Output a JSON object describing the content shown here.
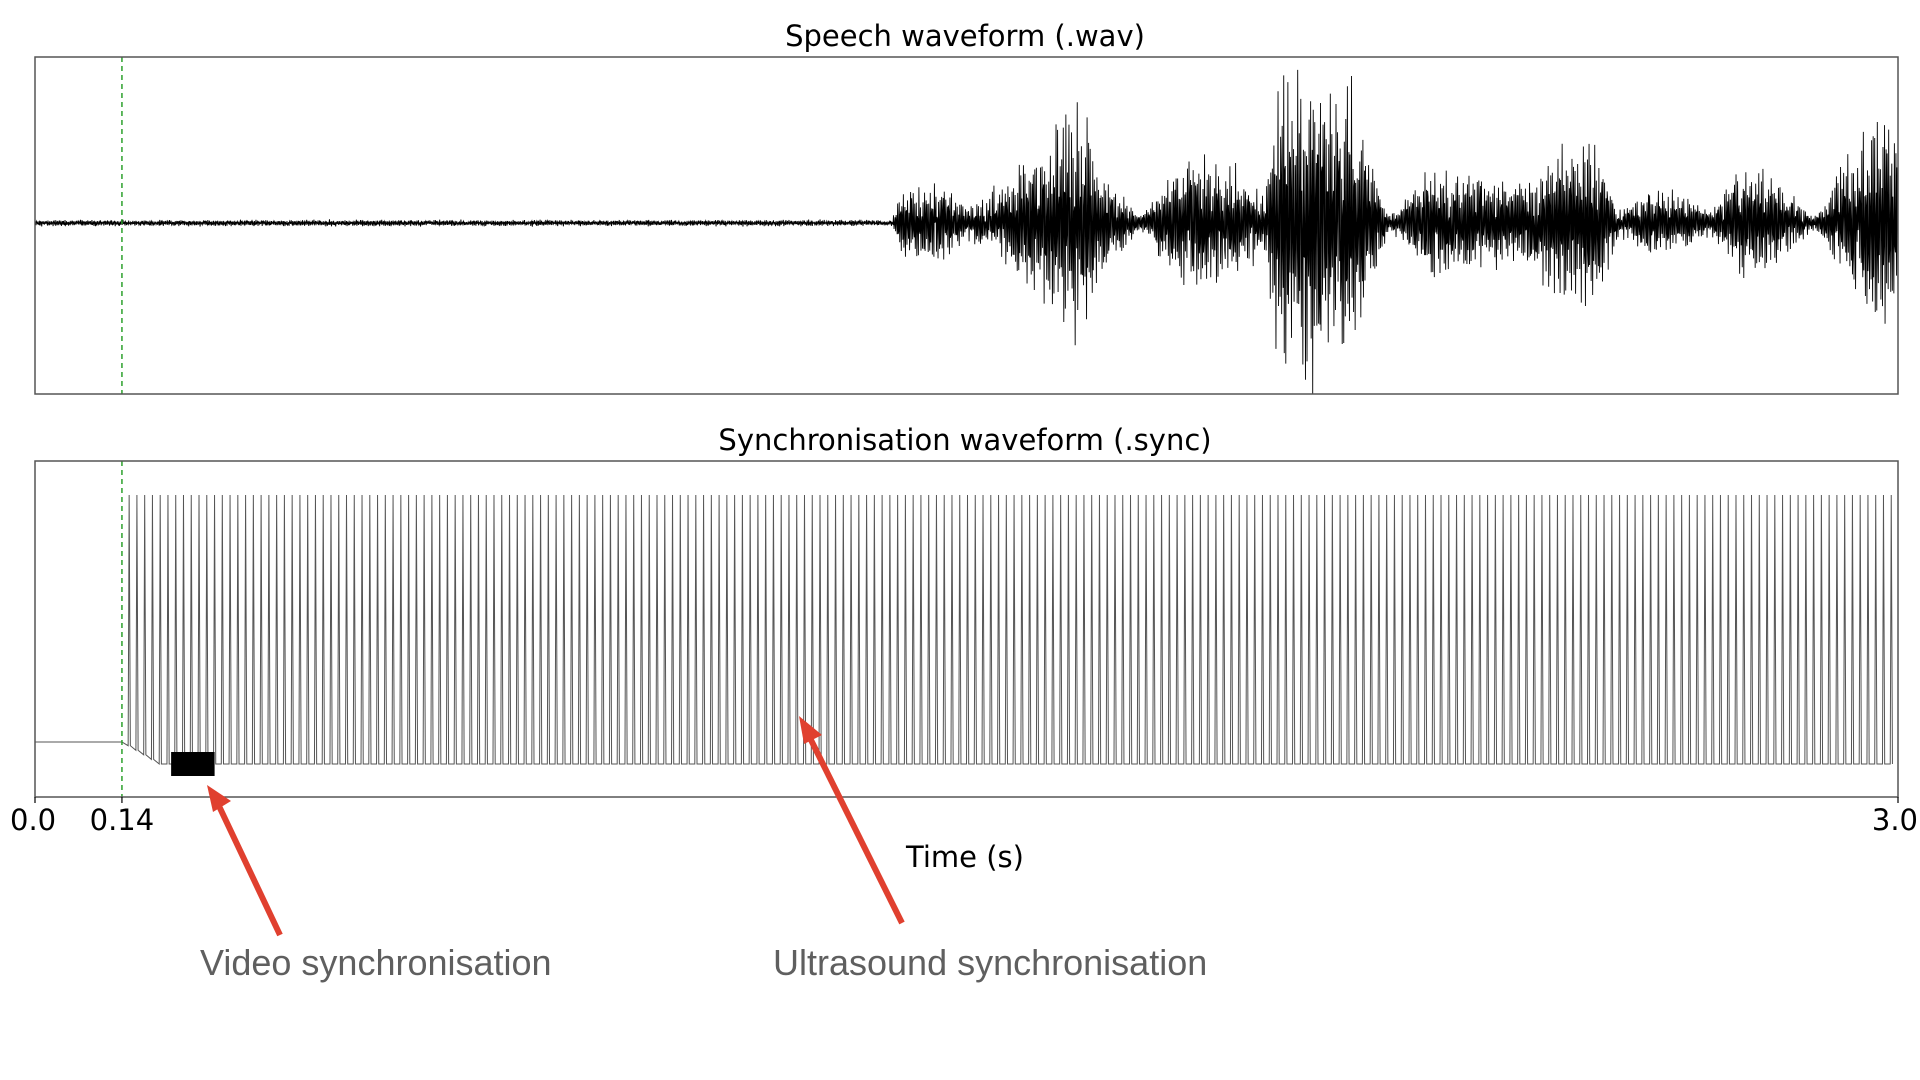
{
  "chart_data": [
    {
      "type": "line",
      "title": "Speech waveform (.wav)",
      "xlim": [
        0.0,
        3.0
      ],
      "grid": false,
      "marker_time": 0.14,
      "marker_color": "#2ca02c",
      "series": [
        {
          "x": [
            0.0,
            1.38,
            1.4,
            1.46,
            1.5,
            1.58,
            1.63,
            1.68,
            1.72,
            1.78,
            1.85,
            1.93,
            1.98,
            2.0,
            2.05,
            2.1,
            2.15,
            2.18,
            2.25,
            2.3,
            2.4,
            2.45,
            2.5,
            2.52,
            2.55,
            2.6,
            2.65,
            2.7,
            2.75,
            2.8,
            2.86,
            2.88,
            2.92,
            2.98,
            3.0
          ],
          "y": [
            0.02,
            0.02,
            0.22,
            0.25,
            0.1,
            0.32,
            0.55,
            0.8,
            0.35,
            0.05,
            0.4,
            0.38,
            0.15,
            0.9,
            0.95,
            0.98,
            0.5,
            0.04,
            0.38,
            0.32,
            0.25,
            0.45,
            0.52,
            0.45,
            0.08,
            0.22,
            0.18,
            0.08,
            0.38,
            0.32,
            0.05,
            0.1,
            0.45,
            0.65,
            0.55
          ],
          "color": "#000000"
        }
      ]
    },
    {
      "type": "line",
      "title": "Synchronisation waveform (.sync)",
      "xlim": [
        0.0,
        3.0
      ],
      "xlabel": "Time (s)",
      "xticks": [
        0.0,
        0.14,
        3.0
      ],
      "xticklabels": [
        "0.0",
        "0.14",
        "3.0"
      ],
      "grid": false,
      "marker_time": 0.14,
      "marker_color": "#2ca02c",
      "series": [
        {
          "x": [
            0.0,
            0.14,
            3.0
          ],
          "y": [
            0.0,
            0.0,
            0.0
          ],
          "pulse_interval_s": 0.0125,
          "pulse_start_s": 0.15,
          "color": "#000000"
        }
      ]
    }
  ],
  "annotations": [
    {
      "text": "Video synchronisation",
      "color": "#e0402f"
    },
    {
      "text": "Ultrasound synchronisation",
      "color": "#e0402f"
    }
  ]
}
